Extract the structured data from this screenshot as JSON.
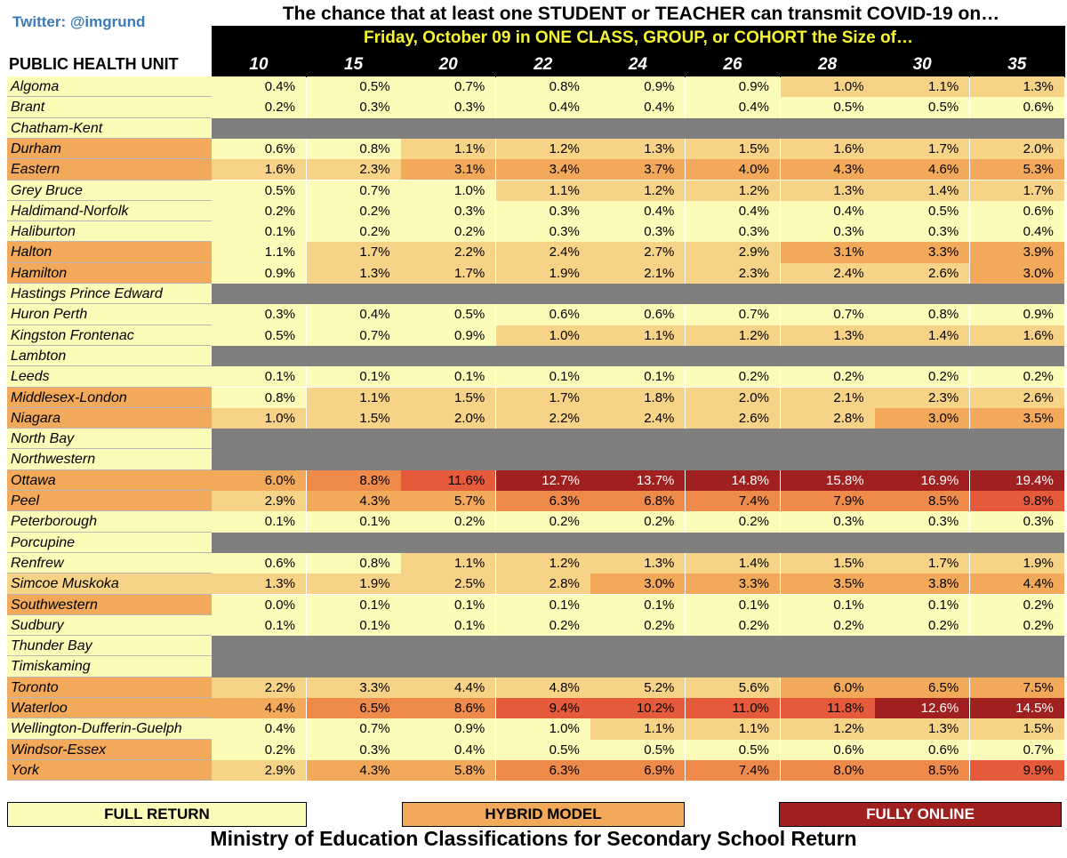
{
  "header": {
    "twitter": "Twitter: @imgrund",
    "title": "The chance that at least one STUDENT or TEACHER can transmit COVID-19 on…",
    "subtitle": "Friday, October 09 in ONE CLASS, GROUP, or COHORT the Size of…",
    "row_header": "PUBLIC HEALTH UNIT"
  },
  "colors": {
    "full": "#fdfbb8",
    "hybrid_light": "#f7d387",
    "hybrid": "#f2a95a",
    "hybrid_dark": "#ee8a4a",
    "online_light": "#e45a3a",
    "online": "#a01f1f",
    "no_data": "#7f7f7f",
    "title_bar": "#000000",
    "subtitle_text": "#f5f531"
  },
  "chart_data": {
    "type": "table",
    "title": "The chance that at least one STUDENT or TEACHER can transmit COVID-19 on… Friday, October 09 in ONE CLASS, GROUP, or COHORT the Size of…",
    "columns": [
      "10",
      "15",
      "20",
      "22",
      "24",
      "26",
      "28",
      "30",
      "35"
    ],
    "rows": [
      {
        "unit": "Algoma",
        "label_class": "full",
        "values": [
          "0.4%",
          "0.5%",
          "0.7%",
          "0.8%",
          "0.9%",
          "0.9%",
          "1.0%",
          "1.1%",
          "1.3%"
        ],
        "classes": [
          "full",
          "full",
          "full",
          "full",
          "full",
          "full",
          "hybrid_light",
          "hybrid_light",
          "hybrid_light"
        ]
      },
      {
        "unit": "Brant",
        "label_class": "full",
        "values": [
          "0.2%",
          "0.3%",
          "0.3%",
          "0.4%",
          "0.4%",
          "0.4%",
          "0.5%",
          "0.5%",
          "0.6%"
        ],
        "classes": [
          "full",
          "full",
          "full",
          "full",
          "full",
          "full",
          "full",
          "full",
          "full"
        ]
      },
      {
        "unit": "Chatham-Kent",
        "label_class": "full",
        "values": null
      },
      {
        "unit": "Durham",
        "label_class": "hybrid",
        "values": [
          "0.6%",
          "0.8%",
          "1.1%",
          "1.2%",
          "1.3%",
          "1.5%",
          "1.6%",
          "1.7%",
          "2.0%"
        ],
        "classes": [
          "full",
          "full",
          "hybrid_light",
          "hybrid_light",
          "hybrid_light",
          "hybrid_light",
          "hybrid_light",
          "hybrid_light",
          "hybrid_light"
        ]
      },
      {
        "unit": "Eastern",
        "label_class": "hybrid",
        "values": [
          "1.6%",
          "2.3%",
          "3.1%",
          "3.4%",
          "3.7%",
          "4.0%",
          "4.3%",
          "4.6%",
          "5.3%"
        ],
        "classes": [
          "hybrid_light",
          "hybrid_light",
          "hybrid",
          "hybrid",
          "hybrid",
          "hybrid",
          "hybrid",
          "hybrid",
          "hybrid"
        ]
      },
      {
        "unit": "Grey Bruce",
        "label_class": "full",
        "values": [
          "0.5%",
          "0.7%",
          "1.0%",
          "1.1%",
          "1.2%",
          "1.2%",
          "1.3%",
          "1.4%",
          "1.7%"
        ],
        "classes": [
          "full",
          "full",
          "full",
          "hybrid_light",
          "hybrid_light",
          "hybrid_light",
          "hybrid_light",
          "hybrid_light",
          "hybrid_light"
        ]
      },
      {
        "unit": "Haldimand-Norfolk",
        "label_class": "full",
        "values": [
          "0.2%",
          "0.2%",
          "0.3%",
          "0.3%",
          "0.4%",
          "0.4%",
          "0.4%",
          "0.5%",
          "0.6%"
        ],
        "classes": [
          "full",
          "full",
          "full",
          "full",
          "full",
          "full",
          "full",
          "full",
          "full"
        ]
      },
      {
        "unit": "Haliburton",
        "label_class": "full",
        "values": [
          "0.1%",
          "0.2%",
          "0.2%",
          "0.3%",
          "0.3%",
          "0.3%",
          "0.3%",
          "0.3%",
          "0.4%"
        ],
        "classes": [
          "full",
          "full",
          "full",
          "full",
          "full",
          "full",
          "full",
          "full",
          "full"
        ]
      },
      {
        "unit": "Halton",
        "label_class": "hybrid",
        "values": [
          "1.1%",
          "1.7%",
          "2.2%",
          "2.4%",
          "2.7%",
          "2.9%",
          "3.1%",
          "3.3%",
          "3.9%"
        ],
        "classes": [
          "full",
          "hybrid_light",
          "hybrid_light",
          "hybrid_light",
          "hybrid_light",
          "hybrid_light",
          "hybrid",
          "hybrid",
          "hybrid"
        ]
      },
      {
        "unit": "Hamilton",
        "label_class": "hybrid",
        "values": [
          "0.9%",
          "1.3%",
          "1.7%",
          "1.9%",
          "2.1%",
          "2.3%",
          "2.4%",
          "2.6%",
          "3.0%"
        ],
        "classes": [
          "full",
          "hybrid_light",
          "hybrid_light",
          "hybrid_light",
          "hybrid_light",
          "hybrid_light",
          "hybrid_light",
          "hybrid_light",
          "hybrid"
        ]
      },
      {
        "unit": "Hastings Prince Edward",
        "label_class": "full",
        "values": null
      },
      {
        "unit": "Huron Perth",
        "label_class": "full",
        "values": [
          "0.3%",
          "0.4%",
          "0.5%",
          "0.6%",
          "0.6%",
          "0.7%",
          "0.7%",
          "0.8%",
          "0.9%"
        ],
        "classes": [
          "full",
          "full",
          "full",
          "full",
          "full",
          "full",
          "full",
          "full",
          "full"
        ]
      },
      {
        "unit": "Kingston Frontenac",
        "label_class": "full",
        "values": [
          "0.5%",
          "0.7%",
          "0.9%",
          "1.0%",
          "1.1%",
          "1.2%",
          "1.3%",
          "1.4%",
          "1.6%"
        ],
        "classes": [
          "full",
          "full",
          "full",
          "hybrid_light",
          "hybrid_light",
          "hybrid_light",
          "hybrid_light",
          "hybrid_light",
          "hybrid_light"
        ]
      },
      {
        "unit": "Lambton",
        "label_class": "full",
        "values": null
      },
      {
        "unit": "Leeds",
        "label_class": "full",
        "values": [
          "0.1%",
          "0.1%",
          "0.1%",
          "0.1%",
          "0.1%",
          "0.2%",
          "0.2%",
          "0.2%",
          "0.2%"
        ],
        "classes": [
          "full",
          "full",
          "full",
          "full",
          "full",
          "full",
          "full",
          "full",
          "full"
        ]
      },
      {
        "unit": "Middlesex-London",
        "label_class": "hybrid",
        "values": [
          "0.8%",
          "1.1%",
          "1.5%",
          "1.7%",
          "1.8%",
          "2.0%",
          "2.1%",
          "2.3%",
          "2.6%"
        ],
        "classes": [
          "full",
          "hybrid_light",
          "hybrid_light",
          "hybrid_light",
          "hybrid_light",
          "hybrid_light",
          "hybrid_light",
          "hybrid_light",
          "hybrid_light"
        ]
      },
      {
        "unit": "Niagara",
        "label_class": "hybrid",
        "values": [
          "1.0%",
          "1.5%",
          "2.0%",
          "2.2%",
          "2.4%",
          "2.6%",
          "2.8%",
          "3.0%",
          "3.5%"
        ],
        "classes": [
          "hybrid_light",
          "hybrid_light",
          "hybrid_light",
          "hybrid_light",
          "hybrid_light",
          "hybrid_light",
          "hybrid_light",
          "hybrid",
          "hybrid"
        ]
      },
      {
        "unit": "North Bay",
        "label_class": "full",
        "values": null
      },
      {
        "unit": "Northwestern",
        "label_class": "full",
        "values": null
      },
      {
        "unit": "Ottawa",
        "label_class": "hybrid",
        "values": [
          "6.0%",
          "8.8%",
          "11.6%",
          "12.7%",
          "13.7%",
          "14.8%",
          "15.8%",
          "16.9%",
          "19.4%"
        ],
        "classes": [
          "hybrid",
          "hybrid_dark",
          "online_light",
          "online",
          "online",
          "online",
          "online",
          "online",
          "online"
        ]
      },
      {
        "unit": "Peel",
        "label_class": "hybrid",
        "values": [
          "2.9%",
          "4.3%",
          "5.7%",
          "6.3%",
          "6.8%",
          "7.4%",
          "7.9%",
          "8.5%",
          "9.8%"
        ],
        "classes": [
          "hybrid_light",
          "hybrid",
          "hybrid",
          "hybrid_dark",
          "hybrid_dark",
          "hybrid_dark",
          "hybrid_dark",
          "hybrid_dark",
          "online_light"
        ]
      },
      {
        "unit": "Peterborough",
        "label_class": "full",
        "values": [
          "0.1%",
          "0.1%",
          "0.2%",
          "0.2%",
          "0.2%",
          "0.2%",
          "0.3%",
          "0.3%",
          "0.3%"
        ],
        "classes": [
          "full",
          "full",
          "full",
          "full",
          "full",
          "full",
          "full",
          "full",
          "full"
        ]
      },
      {
        "unit": "Porcupine",
        "label_class": "full",
        "values": null
      },
      {
        "unit": "Renfrew",
        "label_class": "full",
        "values": [
          "0.6%",
          "0.8%",
          "1.1%",
          "1.2%",
          "1.3%",
          "1.4%",
          "1.5%",
          "1.7%",
          "1.9%"
        ],
        "classes": [
          "full",
          "full",
          "hybrid_light",
          "hybrid_light",
          "hybrid_light",
          "hybrid_light",
          "hybrid_light",
          "hybrid_light",
          "hybrid_light"
        ]
      },
      {
        "unit": "Simcoe Muskoka",
        "label_class": "hybrid_light",
        "values": [
          "1.3%",
          "1.9%",
          "2.5%",
          "2.8%",
          "3.0%",
          "3.3%",
          "3.5%",
          "3.8%",
          "4.4%"
        ],
        "classes": [
          "hybrid_light",
          "hybrid_light",
          "hybrid_light",
          "hybrid_light",
          "hybrid",
          "hybrid",
          "hybrid",
          "hybrid",
          "hybrid"
        ]
      },
      {
        "unit": "Southwestern",
        "label_class": "hybrid",
        "values": [
          "0.0%",
          "0.1%",
          "0.1%",
          "0.1%",
          "0.1%",
          "0.1%",
          "0.1%",
          "0.1%",
          "0.2%"
        ],
        "classes": [
          "full",
          "full",
          "full",
          "full",
          "full",
          "full",
          "full",
          "full",
          "full"
        ]
      },
      {
        "unit": "Sudbury",
        "label_class": "full",
        "values": [
          "0.1%",
          "0.1%",
          "0.1%",
          "0.2%",
          "0.2%",
          "0.2%",
          "0.2%",
          "0.2%",
          "0.2%"
        ],
        "classes": [
          "full",
          "full",
          "full",
          "full",
          "full",
          "full",
          "full",
          "full",
          "full"
        ]
      },
      {
        "unit": "Thunder Bay",
        "label_class": "full",
        "values": null
      },
      {
        "unit": "Timiskaming",
        "label_class": "full",
        "values": null
      },
      {
        "unit": "Toronto",
        "label_class": "hybrid",
        "values": [
          "2.2%",
          "3.3%",
          "4.4%",
          "4.8%",
          "5.2%",
          "5.6%",
          "6.0%",
          "6.5%",
          "7.5%"
        ],
        "classes": [
          "hybrid_light",
          "hybrid_light",
          "hybrid_light",
          "hybrid_light",
          "hybrid_light",
          "hybrid_light",
          "hybrid",
          "hybrid",
          "hybrid"
        ]
      },
      {
        "unit": "Waterloo",
        "label_class": "hybrid",
        "values": [
          "4.4%",
          "6.5%",
          "8.6%",
          "9.4%",
          "10.2%",
          "11.0%",
          "11.8%",
          "12.6%",
          "14.5%"
        ],
        "classes": [
          "hybrid",
          "hybrid_dark",
          "hybrid_dark",
          "online_light",
          "online_light",
          "online_light",
          "online_light",
          "online",
          "online"
        ]
      },
      {
        "unit": "Wellington-Dufferin-Guelph",
        "label_class": "full",
        "values": [
          "0.4%",
          "0.7%",
          "0.9%",
          "1.0%",
          "1.1%",
          "1.1%",
          "1.2%",
          "1.3%",
          "1.5%"
        ],
        "classes": [
          "full",
          "full",
          "full",
          "full",
          "hybrid_light",
          "hybrid_light",
          "hybrid_light",
          "hybrid_light",
          "hybrid_light"
        ]
      },
      {
        "unit": "Windsor-Essex",
        "label_class": "hybrid",
        "values": [
          "0.2%",
          "0.3%",
          "0.4%",
          "0.5%",
          "0.5%",
          "0.5%",
          "0.6%",
          "0.6%",
          "0.7%"
        ],
        "classes": [
          "full",
          "full",
          "full",
          "full",
          "full",
          "full",
          "full",
          "full",
          "full"
        ]
      },
      {
        "unit": "York",
        "label_class": "hybrid",
        "values": [
          "2.9%",
          "4.3%",
          "5.8%",
          "6.3%",
          "6.9%",
          "7.4%",
          "8.0%",
          "8.5%",
          "9.9%"
        ],
        "classes": [
          "hybrid_light",
          "hybrid",
          "hybrid",
          "hybrid_dark",
          "hybrid_dark",
          "hybrid_dark",
          "hybrid_dark",
          "hybrid_dark",
          "online_light"
        ]
      }
    ]
  },
  "legend": {
    "full_return": "FULL RETURN",
    "hybrid_model": "HYBRID MODEL",
    "fully_online": "FULLY ONLINE"
  },
  "footer": "Ministry of Education Classifications for Secondary School Return"
}
